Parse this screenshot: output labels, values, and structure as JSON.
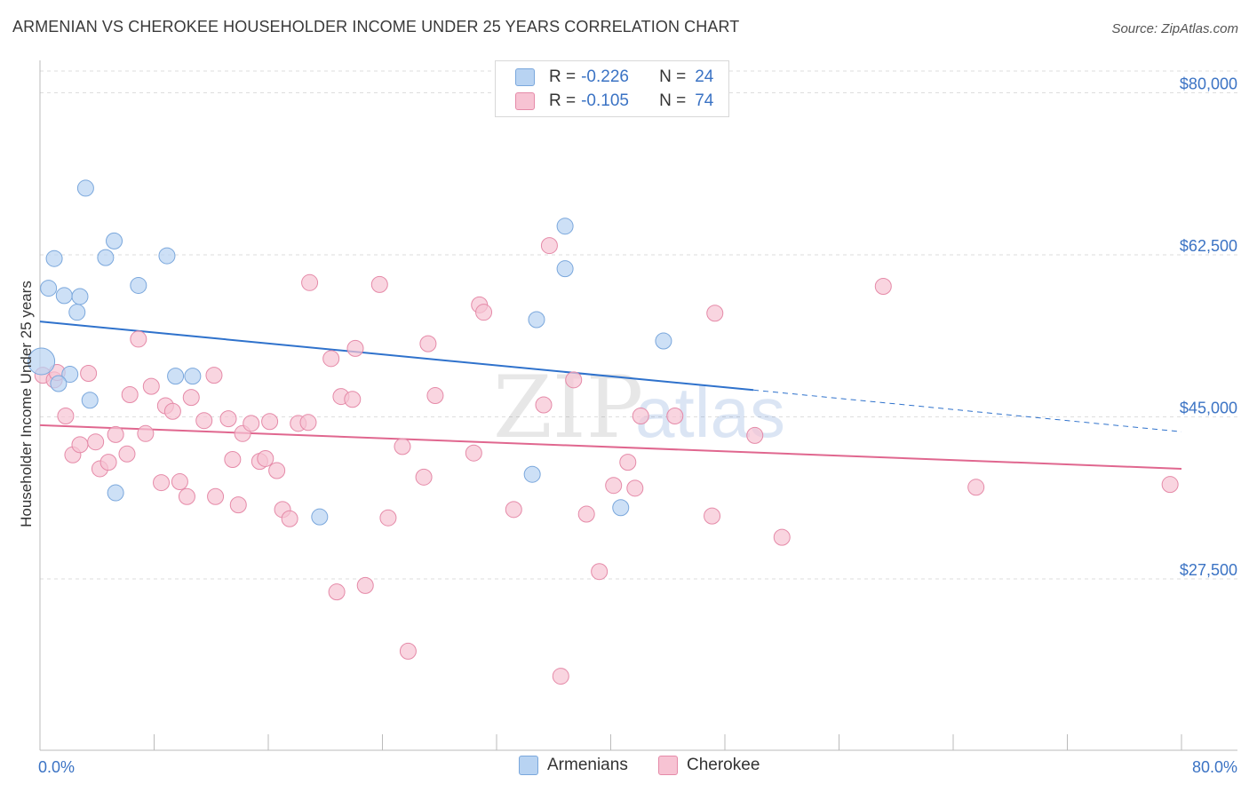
{
  "header": {
    "title": "ARMENIAN VS CHEROKEE HOUSEHOLDER INCOME UNDER 25 YEARS CORRELATION CHART",
    "source": "Source: ZipAtlas.com"
  },
  "legend": {
    "rows": [
      {
        "r_label": "R =",
        "r_value": "-0.226",
        "n_label": "N =",
        "n_value": "24"
      },
      {
        "r_label": "R =",
        "r_value": "-0.105",
        "n_label": "N =",
        "n_value": "74"
      }
    ],
    "bottom": [
      "Armenians",
      "Cherokee"
    ]
  },
  "colors": {
    "armenians_fill": "#b8d3f2",
    "armenians_stroke": "#7aa7dc",
    "armenians_line": "#2f72cc",
    "cherokee_fill": "#f7c3d3",
    "cherokee_stroke": "#e58aa8",
    "cherokee_line": "#e0678f",
    "axis_text": "#3b73c4"
  },
  "watermark": {
    "zip": "ZIP",
    "atlas": "atlas"
  },
  "chart_data": {
    "type": "scatter",
    "title": "ARMENIAN VS CHEROKEE HOUSEHOLDER INCOME UNDER 25 YEARS CORRELATION CHART",
    "xlabel": "",
    "ylabel": "Householder Income Under 25 years",
    "xlim": [
      0,
      80
    ],
    "ylim": [
      9000,
      83500
    ],
    "x_tick_labels": {
      "min": "0.0%",
      "max": "80.0%"
    },
    "y_ticks": [
      {
        "value": 27500,
        "label": "$27,500"
      },
      {
        "value": 45000,
        "label": "$45,000"
      },
      {
        "value": 62500,
        "label": "$62,500"
      },
      {
        "value": 80000,
        "label": "$80,000"
      }
    ],
    "grid": "horizontal dashed",
    "legend_position": "top-center",
    "series": [
      {
        "name": "Armenians",
        "trend": {
          "x0": 0,
          "y0": 55300,
          "x1": 50,
          "y1": 47900,
          "dashed_to_x": 80,
          "dashed_to_y": 43400
        },
        "points": [
          [
            0.1,
            51000
          ],
          [
            0.6,
            58900
          ],
          [
            1.0,
            62100
          ],
          [
            1.7,
            58100
          ],
          [
            2.1,
            49600
          ],
          [
            2.6,
            56300
          ],
          [
            2.8,
            58000
          ],
          [
            3.5,
            46800
          ],
          [
            3.2,
            69700
          ],
          [
            4.6,
            62200
          ],
          [
            5.3,
            36800
          ],
          [
            5.2,
            64000
          ],
          [
            6.9,
            59200
          ],
          [
            8.9,
            62400
          ],
          [
            9.5,
            49400
          ],
          [
            10.7,
            49400
          ],
          [
            1.3,
            48600
          ],
          [
            19.6,
            34200
          ],
          [
            34.5,
            38800
          ],
          [
            34.8,
            55500
          ],
          [
            36.8,
            61000
          ],
          [
            36.8,
            65600
          ],
          [
            40.7,
            35200
          ],
          [
            43.7,
            53200
          ]
        ]
      },
      {
        "name": "Cherokee",
        "trend": {
          "x0": 0,
          "y0": 44100,
          "x1": 80,
          "y1": 39400
        },
        "points": [
          [
            0.2,
            49500
          ],
          [
            1.0,
            49000
          ],
          [
            1.2,
            49800
          ],
          [
            1.8,
            45100
          ],
          [
            2.3,
            40900
          ],
          [
            2.8,
            42000
          ],
          [
            3.4,
            49700
          ],
          [
            3.9,
            42300
          ],
          [
            4.2,
            39400
          ],
          [
            4.8,
            40100
          ],
          [
            5.3,
            43100
          ],
          [
            6.1,
            41000
          ],
          [
            6.3,
            47400
          ],
          [
            6.9,
            53400
          ],
          [
            7.4,
            43200
          ],
          [
            7.8,
            48300
          ],
          [
            8.5,
            37900
          ],
          [
            8.8,
            46200
          ],
          [
            9.3,
            45600
          ],
          [
            9.8,
            38000
          ],
          [
            10.3,
            36400
          ],
          [
            10.6,
            47100
          ],
          [
            11.5,
            44600
          ],
          [
            12.2,
            49500
          ],
          [
            12.3,
            36400
          ],
          [
            13.2,
            44800
          ],
          [
            13.5,
            40400
          ],
          [
            13.9,
            35500
          ],
          [
            14.2,
            43200
          ],
          [
            14.8,
            44300
          ],
          [
            15.4,
            40200
          ],
          [
            15.8,
            40500
          ],
          [
            16.1,
            44500
          ],
          [
            16.6,
            39200
          ],
          [
            17.0,
            35000
          ],
          [
            17.5,
            34000
          ],
          [
            18.1,
            44300
          ],
          [
            18.8,
            44400
          ],
          [
            18.9,
            59500
          ],
          [
            20.4,
            51300
          ],
          [
            20.8,
            26100
          ],
          [
            21.1,
            47200
          ],
          [
            21.9,
            46900
          ],
          [
            22.1,
            52400
          ],
          [
            22.8,
            26800
          ],
          [
            23.8,
            59300
          ],
          [
            24.4,
            34100
          ],
          [
            25.4,
            41800
          ],
          [
            25.8,
            19700
          ],
          [
            26.9,
            38500
          ],
          [
            27.2,
            52900
          ],
          [
            27.7,
            47300
          ],
          [
            30.4,
            41100
          ],
          [
            30.8,
            57100
          ],
          [
            31.1,
            56300
          ],
          [
            33.2,
            35000
          ],
          [
            35.3,
            46300
          ],
          [
            35.7,
            63500
          ],
          [
            36.5,
            17000
          ],
          [
            37.4,
            49000
          ],
          [
            38.3,
            34500
          ],
          [
            39.2,
            28300
          ],
          [
            40.2,
            37600
          ],
          [
            41.2,
            40100
          ],
          [
            41.7,
            37300
          ],
          [
            42.1,
            45100
          ],
          [
            44.5,
            45100
          ],
          [
            47.1,
            34300
          ],
          [
            47.3,
            56200
          ],
          [
            50.1,
            43000
          ],
          [
            52.0,
            32000
          ],
          [
            59.1,
            59100
          ],
          [
            65.6,
            37400
          ],
          [
            79.2,
            37700
          ]
        ]
      }
    ]
  }
}
